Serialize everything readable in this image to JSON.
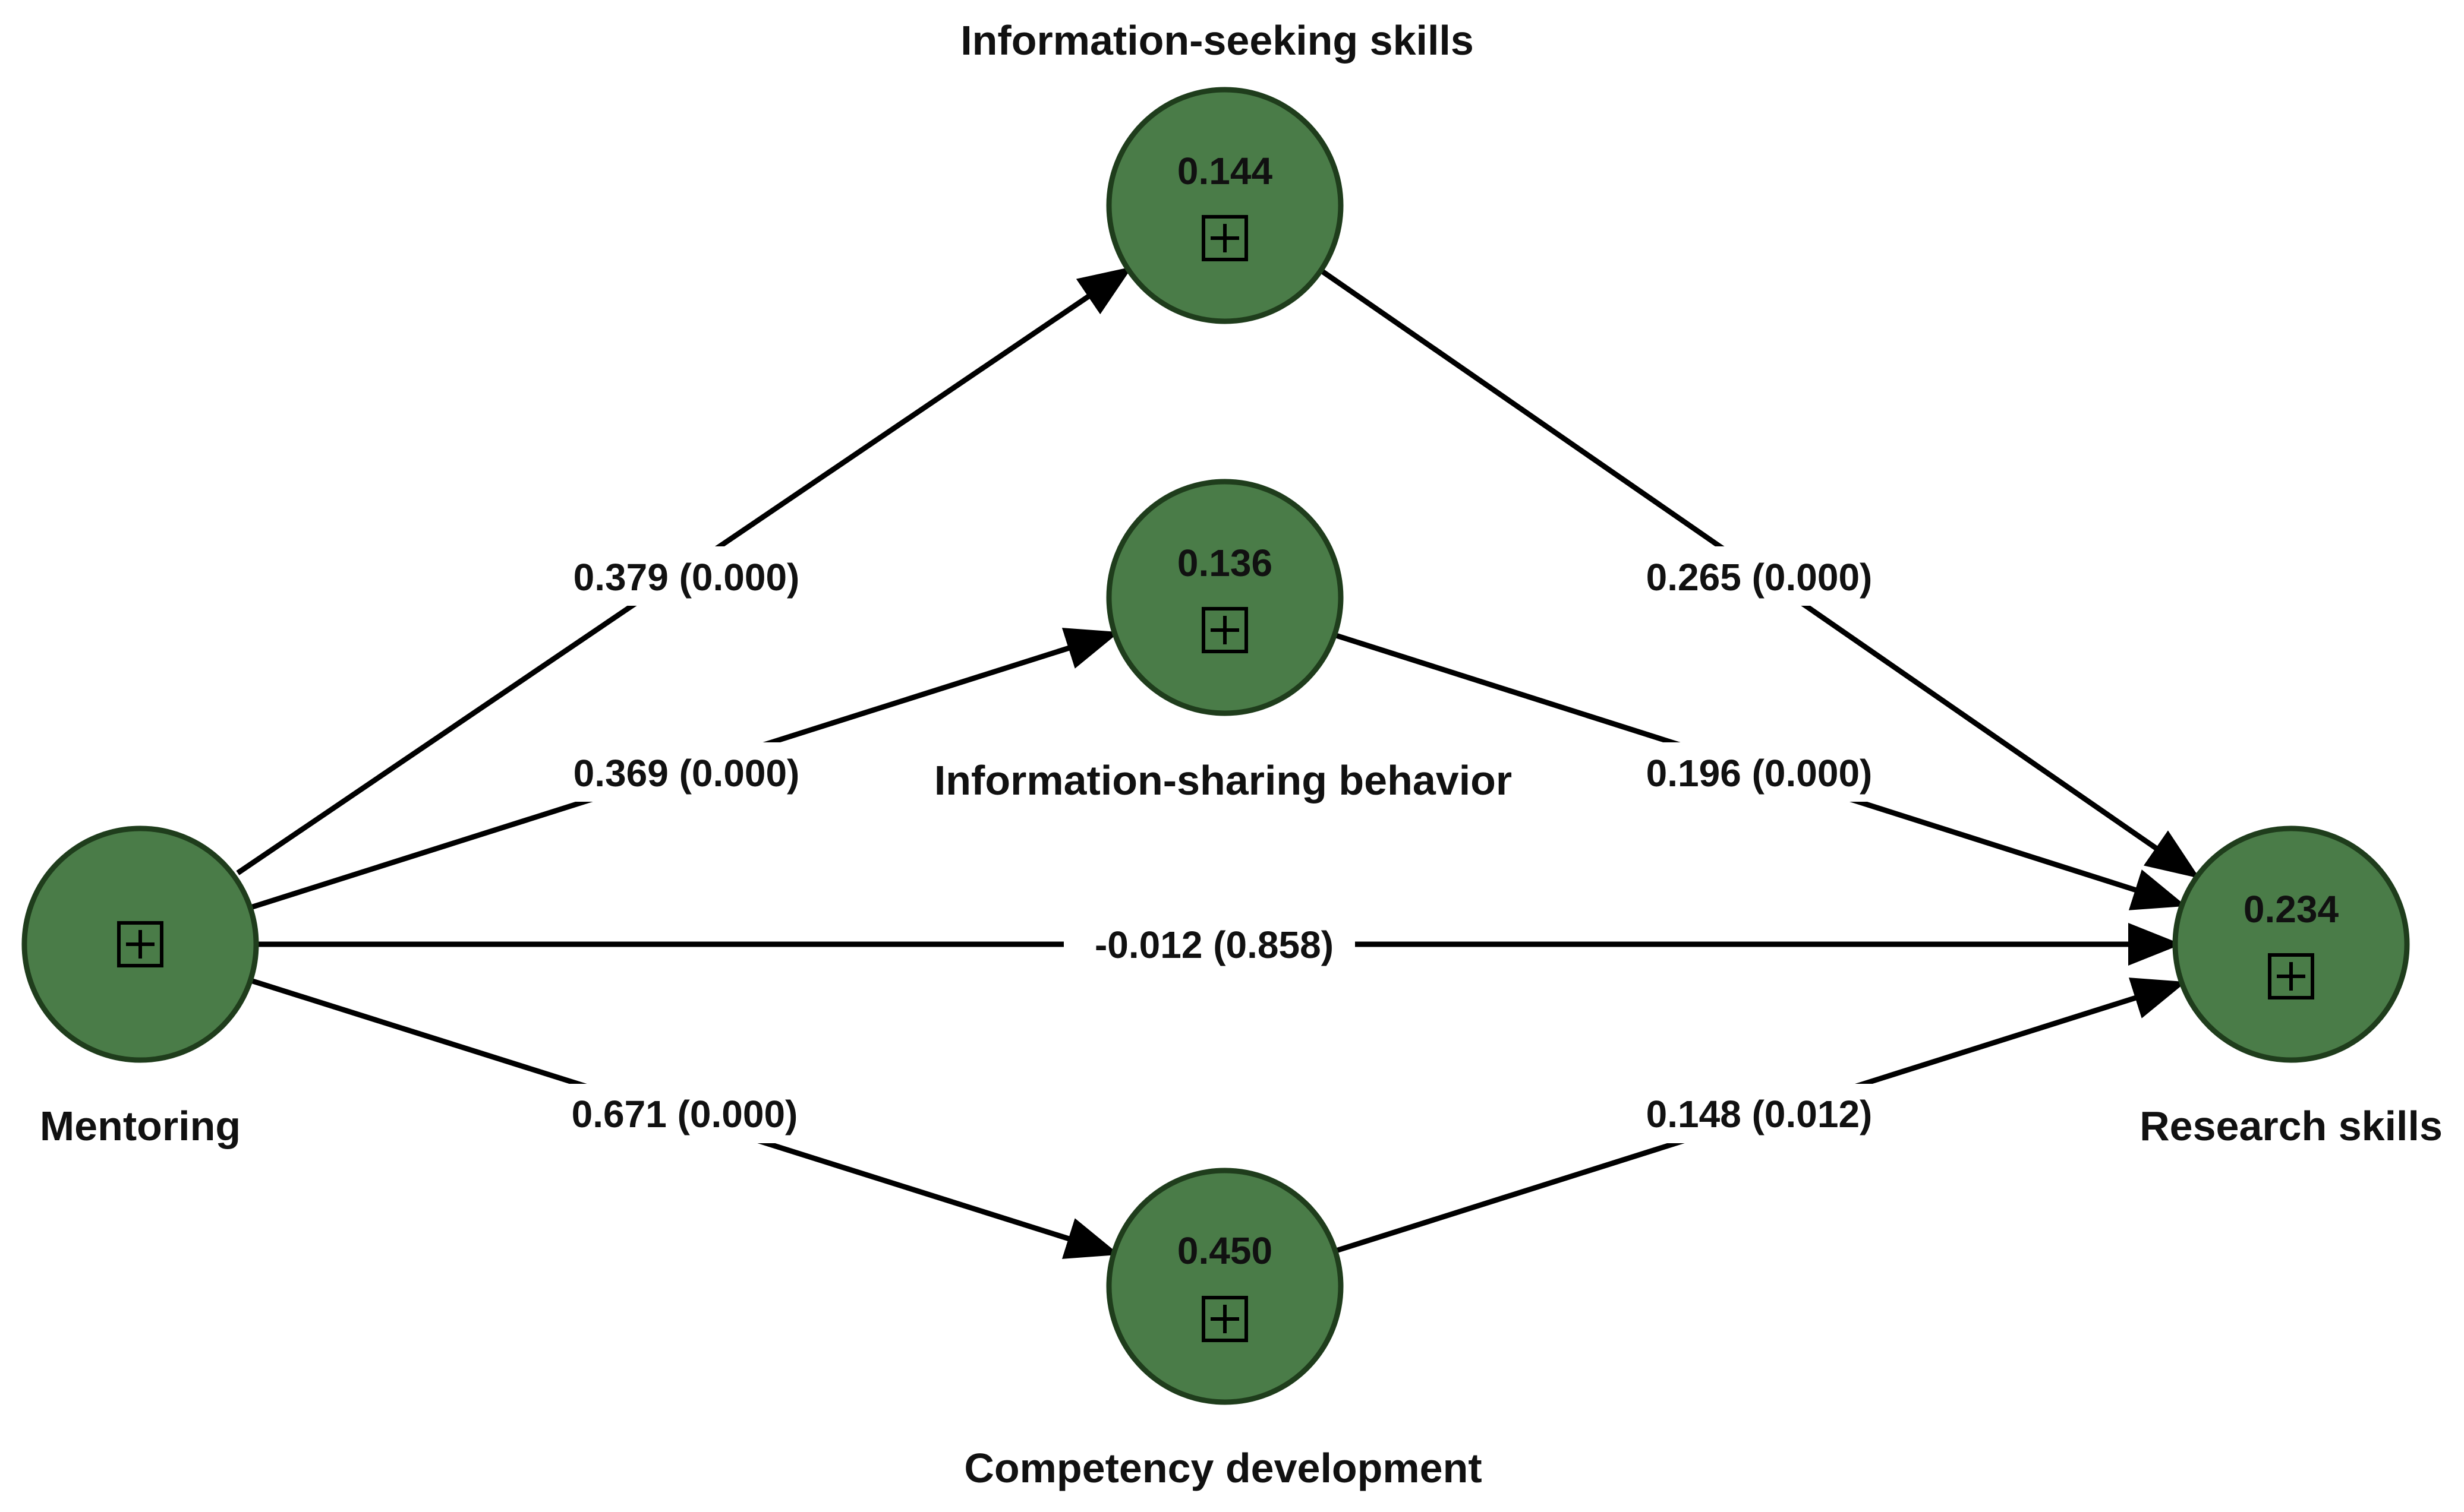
{
  "nodes": {
    "mentoring": {
      "label": "Mentoring",
      "value": ""
    },
    "info_seeking": {
      "label": "Information-seeking skills",
      "value": "0.144"
    },
    "info_sharing": {
      "label": "Information-sharing behavior",
      "value": "0.136"
    },
    "competency": {
      "label": "Competency development",
      "value": "0.450"
    },
    "research": {
      "label": "Research skills",
      "value": "0.234"
    }
  },
  "edges": {
    "mentoring_to_info_seeking": "0.379 (0.000)",
    "mentoring_to_info_sharing": "0.369 (0.000)",
    "mentoring_to_research": "-0.012 (0.858)",
    "mentoring_to_competency": "0.671 (0.000)",
    "info_seeking_to_research": "0.265 (0.000)",
    "info_sharing_to_research": "0.196 (0.000)",
    "competency_to_research": "0.148 (0.012)"
  },
  "colors": {
    "node_fill": "#4a7c48",
    "node_stroke": "#1f3d1c",
    "edge": "#000000"
  },
  "icons": {
    "expand": "square-plus-icon"
  }
}
